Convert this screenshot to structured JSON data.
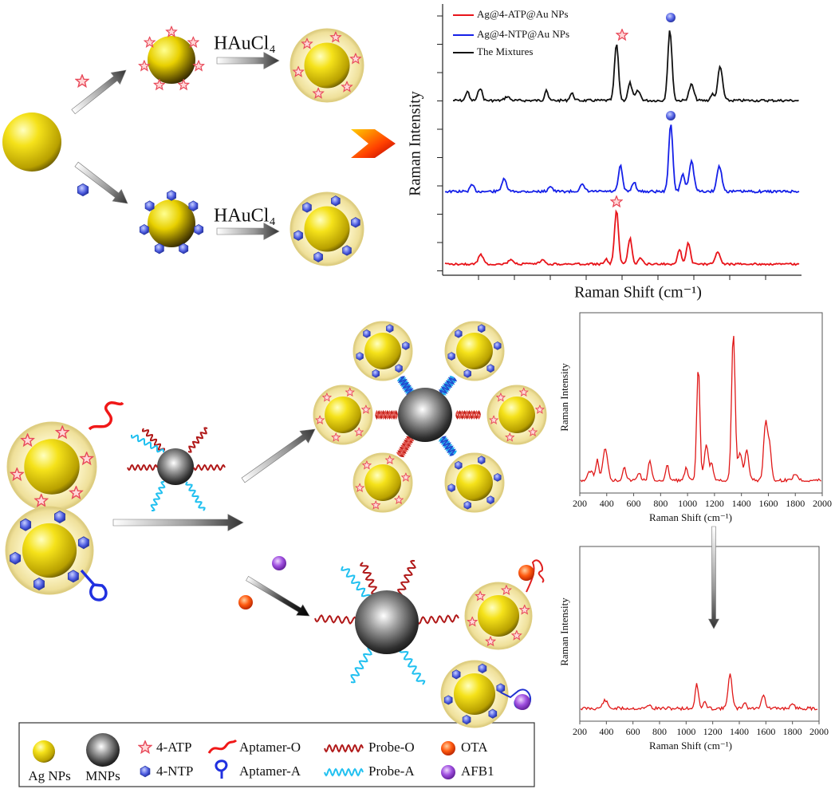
{
  "scheme": {
    "reagent_top": "HAuCl₄",
    "reagent_bottom": "HAuCl₄"
  },
  "reference_spectra": {
    "legend": [
      "Ag@4-ATP@Au NPs",
      "Ag@4-NTP@Au NPs",
      "The Mixtures"
    ],
    "xlabel": "Raman Shift (cm⁻¹)",
    "ylabel": "Raman Intensity"
  },
  "spectrum_before": {
    "ylabel": "Raman Intensity",
    "xlabel": "Raman Shift (cm⁻¹)",
    "xlim": [
      200,
      2000
    ],
    "xticks": [
      200,
      400,
      600,
      800,
      1000,
      1200,
      1400,
      1600,
      1800,
      2000
    ]
  },
  "spectrum_after": {
    "ylabel": "Raman Intensity",
    "xlabel": "Raman Shift (cm⁻¹)",
    "xlim": [
      200,
      2000
    ],
    "xticks": [
      200,
      400,
      600,
      800,
      1000,
      1200,
      1400,
      1600,
      1800,
      2000
    ]
  },
  "legend": {
    "items": [
      "Ag NPs",
      "MNPs",
      "4-ATP",
      "4-NTP",
      "Aptamer-O",
      "Aptamer-A",
      "Probe-O",
      "Probe-A",
      "OTA",
      "AFB1"
    ]
  }
}
